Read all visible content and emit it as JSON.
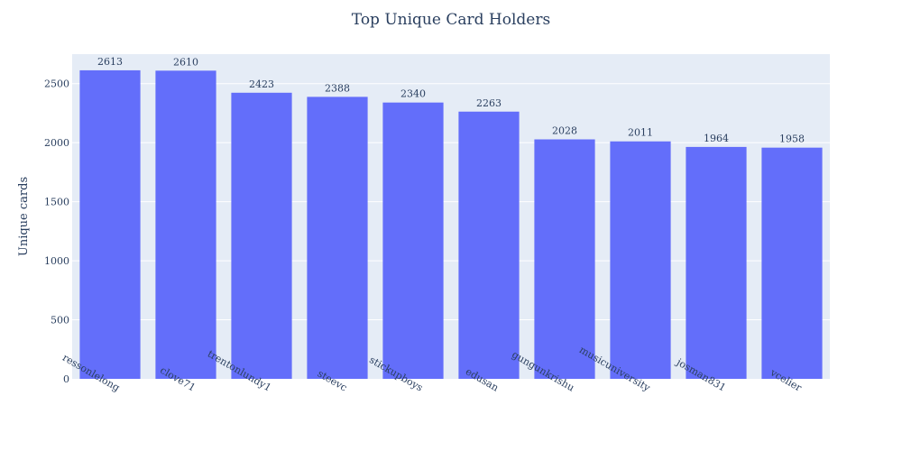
{
  "chart_data": {
    "type": "bar",
    "title": "Top Unique Card Holders",
    "xlabel": "",
    "ylabel": "Unique cards",
    "categories": [
      "ressonlelong",
      "clove71",
      "trentonlundy1",
      "steevc",
      "stickupboys",
      "edusan",
      "gungunkrishu",
      "musicuniversity",
      "josman831",
      "vcelier"
    ],
    "values": [
      2613,
      2610,
      2423,
      2388,
      2340,
      2263,
      2028,
      2011,
      1964,
      1958
    ],
    "yticks": [
      0,
      500,
      1000,
      1500,
      2000,
      2500
    ],
    "ylim": [
      0,
      2750
    ],
    "grid": true,
    "colors": {
      "bar": "#636efa",
      "plot_bg": "#e5ecf6",
      "grid": "#ffffff",
      "text": "#2a3f5f"
    }
  }
}
